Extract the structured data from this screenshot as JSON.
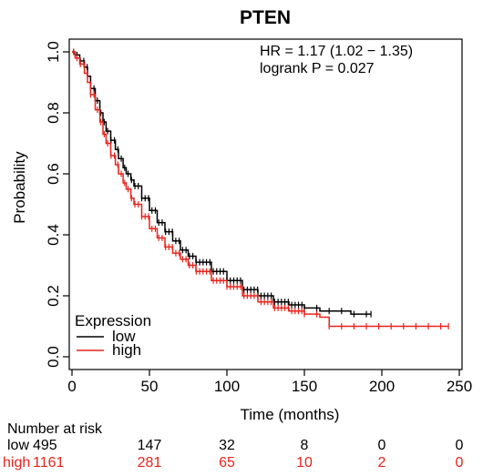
{
  "chart_data": {
    "type": "line",
    "title": "PTEN",
    "xlabel": "Time (months)",
    "ylabel": "Probability",
    "xlim": [
      0,
      250
    ],
    "ylim": [
      0,
      1
    ],
    "x_ticks": [
      0,
      50,
      100,
      150,
      200,
      250
    ],
    "y_ticks": [
      0.0,
      0.2,
      0.4,
      0.6,
      0.8,
      1.0
    ],
    "y_tick_labels": [
      "0.0",
      "0.2",
      "0.4",
      "0.6",
      "0.8",
      "1.0"
    ],
    "grid": false,
    "annotations": [
      "HR = 1.17 (1.02 − 1.35)",
      "logrank P = 0.027"
    ],
    "legend": {
      "title": "Expression",
      "placement": "bottom-left",
      "entries": [
        "low",
        "high"
      ]
    },
    "series": [
      {
        "name": "low",
        "color": "#000000",
        "x": [
          0,
          2,
          5,
          8,
          10,
          12,
          15,
          18,
          20,
          22,
          25,
          28,
          30,
          33,
          35,
          38,
          40,
          45,
          50,
          55,
          60,
          65,
          70,
          75,
          80,
          90,
          100,
          110,
          120,
          130,
          140,
          150,
          160,
          170,
          180,
          193
        ],
        "y": [
          1.0,
          0.99,
          0.97,
          0.95,
          0.92,
          0.88,
          0.84,
          0.8,
          0.77,
          0.74,
          0.71,
          0.68,
          0.65,
          0.62,
          0.6,
          0.58,
          0.56,
          0.52,
          0.48,
          0.44,
          0.41,
          0.38,
          0.35,
          0.33,
          0.31,
          0.28,
          0.25,
          0.22,
          0.2,
          0.18,
          0.17,
          0.16,
          0.15,
          0.15,
          0.14,
          0.14
        ]
      },
      {
        "name": "high",
        "color": "#e8231c",
        "x": [
          0,
          2,
          5,
          8,
          10,
          12,
          15,
          18,
          20,
          22,
          25,
          28,
          30,
          33,
          35,
          38,
          40,
          45,
          50,
          55,
          60,
          65,
          70,
          75,
          80,
          90,
          100,
          110,
          120,
          130,
          140,
          150,
          160,
          165,
          166,
          180,
          200,
          243
        ],
        "y": [
          1.0,
          0.98,
          0.96,
          0.93,
          0.9,
          0.86,
          0.81,
          0.77,
          0.73,
          0.7,
          0.66,
          0.63,
          0.6,
          0.57,
          0.55,
          0.52,
          0.5,
          0.46,
          0.42,
          0.39,
          0.36,
          0.34,
          0.32,
          0.3,
          0.28,
          0.25,
          0.23,
          0.2,
          0.18,
          0.16,
          0.15,
          0.14,
          0.13,
          0.13,
          0.1,
          0.1,
          0.1,
          0.1
        ]
      }
    ],
    "risk_table": {
      "title": "Number at risk",
      "times": [
        0,
        50,
        100,
        150,
        200,
        250
      ],
      "rows": [
        {
          "label": "low",
          "color": "#000000",
          "values": [
            "495",
            "147",
            "32",
            "8",
            "0",
            "0"
          ]
        },
        {
          "label": "high",
          "color": "#e8231c",
          "values": [
            "1161",
            "281",
            "65",
            "10",
            "2",
            "0"
          ]
        }
      ]
    }
  }
}
